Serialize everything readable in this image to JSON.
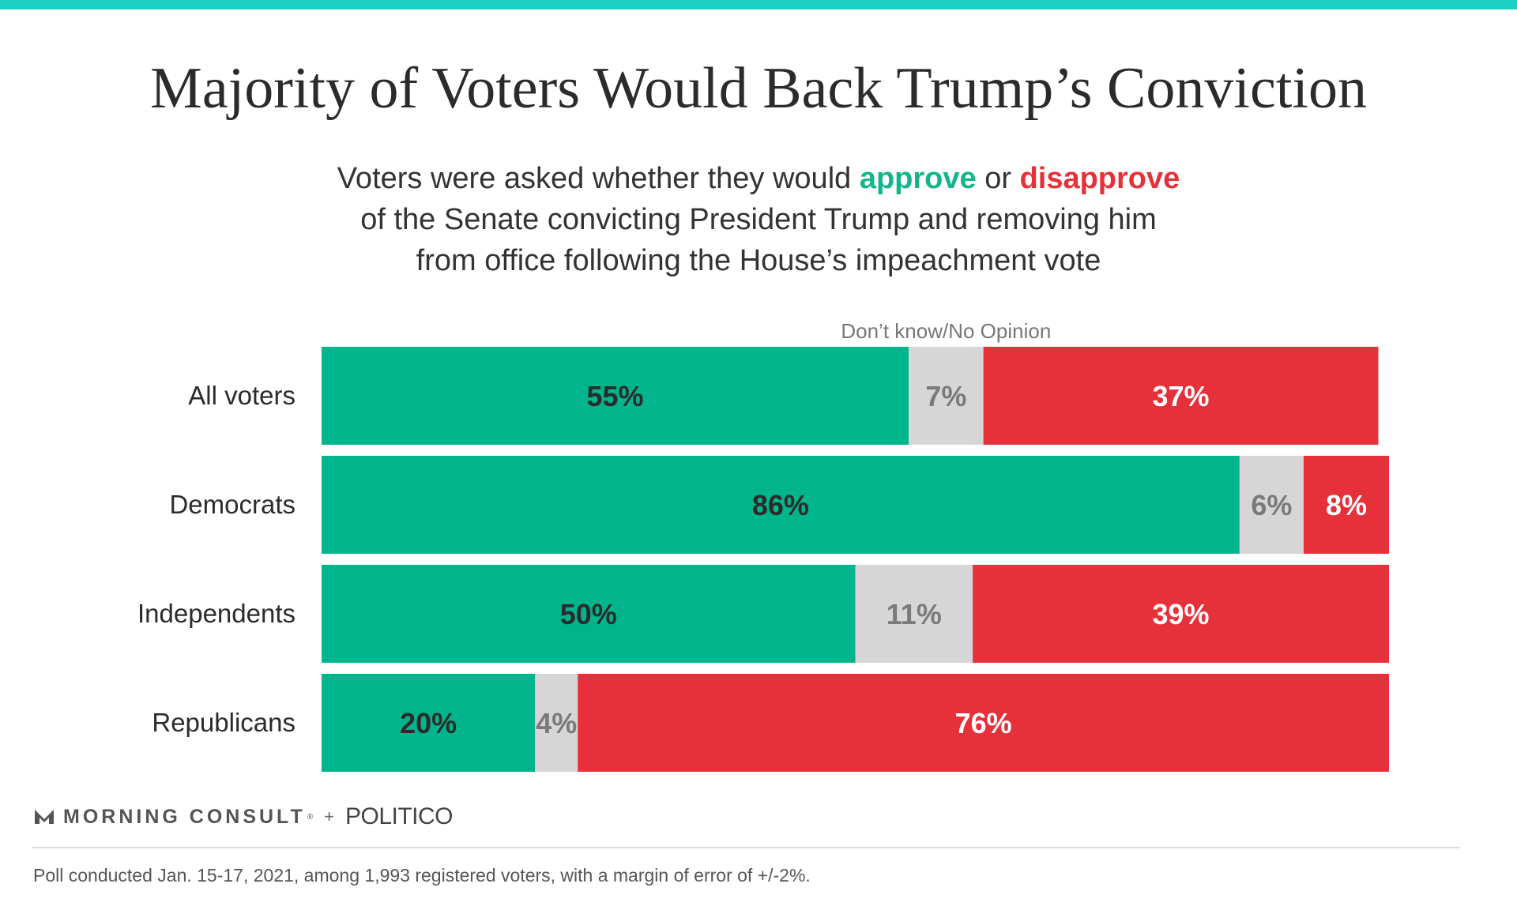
{
  "title": "Majority of Voters Would Back Trump’s Conviction",
  "subtitle": {
    "part1": "Voters were asked whether they would ",
    "approve_word": "approve",
    "part2": " or ",
    "disapprove_word": "disapprove",
    "line2": "of the Senate convicting President Trump and removing him",
    "line3": "from office following the House’s impeachment vote"
  },
  "colors": {
    "accent_bar": "#1dcfc4",
    "approve": "#00b48b",
    "dont_know": "#d6d6d6",
    "disapprove": "#e6303a"
  },
  "chart_data": {
    "type": "bar",
    "orientation": "horizontal",
    "stacked": true,
    "categories": [
      "All voters",
      "Democrats",
      "Independents",
      "Republicans"
    ],
    "series": [
      {
        "key": "approve",
        "values": [
          55,
          86,
          50,
          20
        ],
        "labels": [
          "55%",
          "86%",
          "50%",
          "20%"
        ]
      },
      {
        "key": "dont_know",
        "name": "Don’t know/No Opinion",
        "values": [
          7,
          6,
          11,
          4
        ],
        "labels": [
          "7%",
          "6%",
          "11%",
          "4%"
        ]
      },
      {
        "key": "disapprove",
        "values": [
          37,
          8,
          39,
          76
        ],
        "labels": [
          "37%",
          "8%",
          "39%",
          "76%"
        ]
      }
    ],
    "xlim": [
      0,
      100
    ]
  },
  "footer": {
    "brand1": "MORNING CONSULT",
    "registered_mark": "®",
    "plus": "+",
    "brand2": "POLITICO",
    "note": "Poll conducted Jan. 15-17, 2021, among 1,993 registered voters, with a margin of error of +/-2%."
  }
}
